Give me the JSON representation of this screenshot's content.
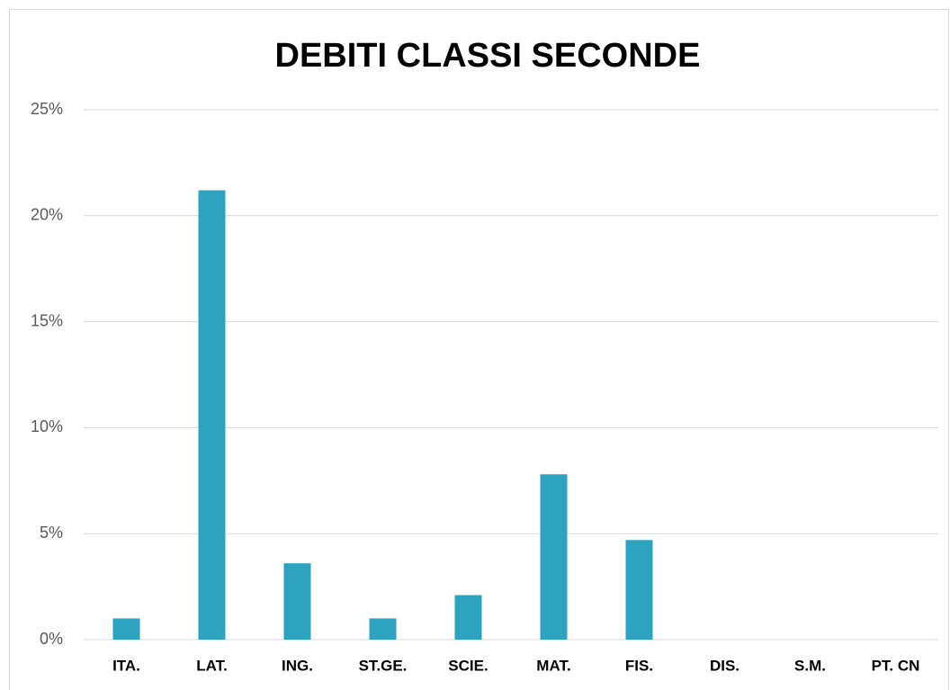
{
  "chart_data": {
    "type": "bar",
    "title": "DEBITI CLASSI SECONDE",
    "categories": [
      "ITA.",
      "LAT.",
      "ING.",
      "ST.GE.",
      "SCIE.",
      "MAT.",
      "FIS.",
      "DIS.",
      "S.M.",
      "PT. CN"
    ],
    "values": [
      1.0,
      21.2,
      3.6,
      1.0,
      2.1,
      7.8,
      4.7,
      0,
      0,
      0
    ],
    "color": "#2ea3c0",
    "ylim": [
      0,
      25
    ],
    "yticks": [
      {
        "value": 0,
        "label": "0%"
      },
      {
        "value": 5,
        "label": "5%"
      },
      {
        "value": 10,
        "label": "10%"
      },
      {
        "value": 15,
        "label": "15%"
      },
      {
        "value": 20,
        "label": "20%"
      },
      {
        "value": 25,
        "label": "25%"
      }
    ],
    "grid": true
  }
}
